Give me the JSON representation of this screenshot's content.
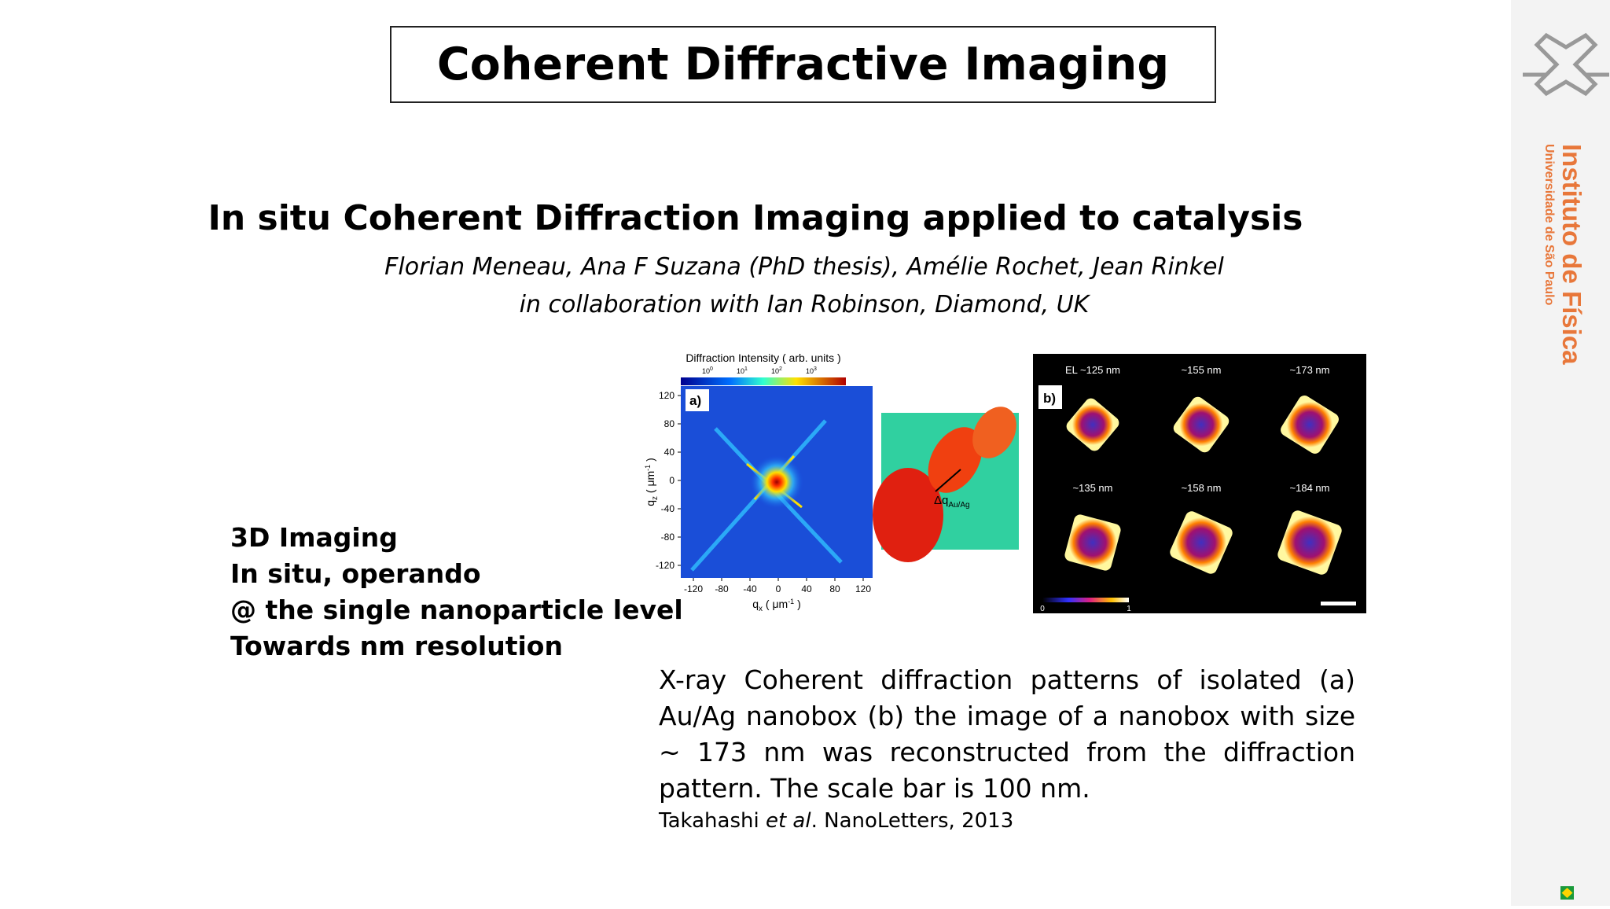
{
  "header": {
    "title": "Coherent Diffractive Imaging"
  },
  "subtitle": "In situ Coherent Diffraction Imaging applied to catalysis",
  "authors": [
    "Florian Meneau, Ana F Suzana (PhD thesis), Amélie Rochet, Jean Rinkel",
    "in collaboration with Ian Robinson, Diamond, UK"
  ],
  "bullets": [
    "3D Imaging",
    "In situ, operando",
    "@ the single nanoparticle level",
    "Towards nm resolution"
  ],
  "figure": {
    "a": {
      "colorbar_title": "Diffraction Intensity ( arb. units )",
      "colorbar_ticks": [
        [
          "10",
          "0"
        ],
        [
          "10",
          "1"
        ],
        [
          "10",
          "2"
        ],
        [
          "10",
          "3"
        ]
      ],
      "panel_label": "a)",
      "yticks": [
        "120",
        "80",
        "40",
        "0",
        "-40",
        "-80",
        "-120"
      ],
      "xticks": [
        "-120",
        "-80",
        "-40",
        "0",
        "40",
        "80",
        "120"
      ],
      "y_label": [
        "q",
        "z",
        " ( μm",
        "-1",
        " )"
      ],
      "x_label": [
        "q",
        "x",
        " ( μm",
        "-1",
        " )"
      ],
      "inset_label": [
        "Δq",
        "Au/Ag"
      ]
    },
    "b": {
      "panel_label": "b)",
      "labels": [
        "EL ~125 nm",
        "~155 nm",
        "~173 nm",
        "~135 nm",
        "~158 nm",
        "~184 nm"
      ],
      "colorbar_ticks": [
        "0",
        "1"
      ]
    }
  },
  "caption": "X-ray Coherent diffraction patterns of isolated (a) Au/Ag nanobox (b) the image of a nanobox with size ∼ 173 nm was reconstructed from the diffraction pattern. The scale bar is 100 nm.",
  "citation": [
    "Takahashi ",
    "et al",
    ". NanoLetters, 2013"
  ],
  "sidebar": {
    "institute": "Instituto de Física",
    "university": "Universidade de São Paulo"
  }
}
